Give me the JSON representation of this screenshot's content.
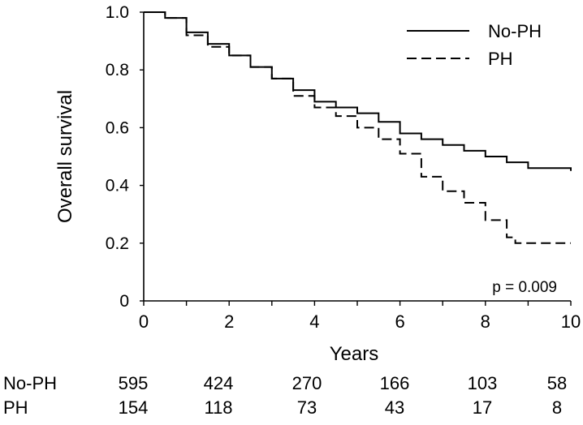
{
  "chart_data": {
    "type": "line",
    "xlabel": "Years",
    "ylabel": "Overall survival",
    "xlim": [
      0,
      10
    ],
    "ylim": [
      0,
      1.0
    ],
    "x_ticks": [
      "0",
      "2",
      "4",
      "6",
      "8",
      "10"
    ],
    "y_ticks": [
      "0",
      "0.2",
      "0.4",
      "0.6",
      "0.8",
      "1.0"
    ],
    "grid": false,
    "legend_position": "top-right",
    "annotation": "p = 0.009",
    "series": [
      {
        "name": "No-PH",
        "line_style": "solid",
        "x": [
          0,
          0.5,
          1.0,
          1.5,
          2.0,
          2.5,
          3.0,
          3.5,
          4.0,
          4.5,
          5.0,
          5.5,
          6.0,
          6.5,
          7.0,
          7.5,
          8.0,
          8.5,
          9.0,
          9.5,
          10.0
        ],
        "y": [
          1.0,
          0.98,
          0.93,
          0.89,
          0.85,
          0.81,
          0.77,
          0.73,
          0.69,
          0.67,
          0.65,
          0.62,
          0.58,
          0.56,
          0.54,
          0.52,
          0.5,
          0.48,
          0.46,
          0.46,
          0.45
        ]
      },
      {
        "name": "PH",
        "line_style": "dashed",
        "x": [
          0,
          0.5,
          1.0,
          1.5,
          2.0,
          2.5,
          3.0,
          3.5,
          4.0,
          4.5,
          5.0,
          5.5,
          6.0,
          6.5,
          7.0,
          7.5,
          8.0,
          8.5,
          8.7,
          9.0,
          10.0
        ],
        "y": [
          1.0,
          0.98,
          0.92,
          0.88,
          0.85,
          0.81,
          0.77,
          0.71,
          0.67,
          0.64,
          0.6,
          0.56,
          0.51,
          0.43,
          0.38,
          0.34,
          0.28,
          0.22,
          0.2,
          0.2,
          0.2
        ]
      }
    ],
    "number_at_risk": {
      "times": [
        0,
        2,
        4,
        6,
        8,
        10
      ],
      "rows": [
        {
          "label": "No-PH",
          "values": [
            "595",
            "424",
            "270",
            "166",
            "103",
            "58"
          ]
        },
        {
          "label": "PH",
          "values": [
            "154",
            "118",
            "73",
            "43",
            "17",
            "8"
          ]
        }
      ]
    }
  }
}
